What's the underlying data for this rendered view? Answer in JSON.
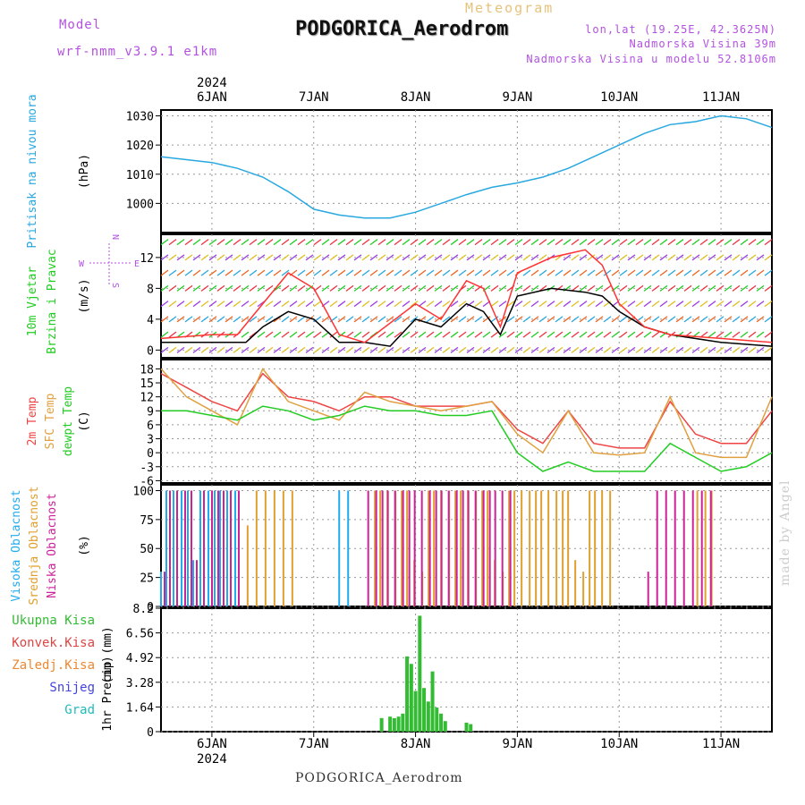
{
  "header": {
    "model_label": "Model",
    "model_version": "wrf-nmm_v3.9.1 e1km",
    "meteogram_label": "Meteogram",
    "station": "PODGORICA_Aerodrom",
    "lonlat": "lon,lat (19.25E, 42.3625N)",
    "elevation": "Nadmorska Visina 39m",
    "elevation_model": "Nadmorska Visina u modelu 52.8106m"
  },
  "footer": {
    "station": "PODGORICA_Aerodrom",
    "credit": "made by Angel"
  },
  "time_axis": {
    "year": "2024",
    "days": [
      "6JAN",
      "7JAN",
      "8JAN",
      "9JAN",
      "10JAN",
      "11JAN"
    ],
    "start": "2024-01-05T12:00",
    "end": "2024-01-11T12:00"
  },
  "colors": {
    "pressure": "#29a8e0",
    "wind_speed": "#000000",
    "gust": "#ff3333",
    "t2m": "#ee4444",
    "sfc": "#e0a040",
    "dewpt": "#22cc22",
    "high_cloud": "#22aaee",
    "mid_cloud": "#e0a030",
    "low_cloud": "#cc2299",
    "precip_total": "#33bb33",
    "precip_conv": "#dd4444",
    "precip_frz": "#ee8833"
  },
  "wind_legend": {
    "w": "W",
    "e": "E",
    "n": "N",
    "s": "S"
  },
  "chart_data": [
    {
      "type": "line",
      "panel": "pressure",
      "ylabel": "Pritisak na nivou mora",
      "unit": "(hPa)",
      "ylim": [
        990,
        1032
      ],
      "yticks": [
        1000,
        1010,
        1020,
        1030
      ],
      "grid": true,
      "series": [
        {
          "name": "Pritisak na nivou mora",
          "x": [
            "2024-01-05T12:00",
            "2024-01-05T18:00",
            "2024-01-06T00:00",
            "2024-01-06T06:00",
            "2024-01-06T12:00",
            "2024-01-06T18:00",
            "2024-01-07T00:00",
            "2024-01-07T06:00",
            "2024-01-07T12:00",
            "2024-01-07T18:00",
            "2024-01-08T00:00",
            "2024-01-08T06:00",
            "2024-01-08T12:00",
            "2024-01-08T18:00",
            "2024-01-09T00:00",
            "2024-01-09T06:00",
            "2024-01-09T12:00",
            "2024-01-09T18:00",
            "2024-01-10T00:00",
            "2024-01-10T06:00",
            "2024-01-10T12:00",
            "2024-01-10T18:00",
            "2024-01-11T00:00",
            "2024-01-11T06:00",
            "2024-01-11T12:00"
          ],
          "values": [
            1016,
            1015,
            1014,
            1012,
            1009,
            1004,
            998,
            996,
            995,
            995,
            997,
            1000,
            1003,
            1005.5,
            1007,
            1009,
            1012,
            1016,
            1020,
            1024,
            1027,
            1028,
            1030,
            1029,
            1026
          ]
        }
      ]
    },
    {
      "type": "line",
      "panel": "wind",
      "ylabel": "10m Vjetar Brzina i Pravac",
      "unit": "(m/s)",
      "ylim": [
        -1,
        15
      ],
      "yticks": [
        0,
        4,
        8,
        12
      ],
      "grid": true,
      "series": [
        {
          "name": "wind_speed",
          "x": [
            "2024-01-05T12:00",
            "2024-01-06T00:00",
            "2024-01-06T08:00",
            "2024-01-06T12:00",
            "2024-01-06T18:00",
            "2024-01-07T00:00",
            "2024-01-07T06:00",
            "2024-01-07T12:00",
            "2024-01-07T18:00",
            "2024-01-08T00:00",
            "2024-01-08T06:00",
            "2024-01-08T12:00",
            "2024-01-08T16:00",
            "2024-01-08T20:00",
            "2024-01-09T00:00",
            "2024-01-09T08:00",
            "2024-01-09T16:00",
            "2024-01-09T20:00",
            "2024-01-10T00:00",
            "2024-01-10T06:00",
            "2024-01-10T12:00",
            "2024-01-11T00:00",
            "2024-01-11T12:00"
          ],
          "values": [
            1,
            1,
            1,
            3,
            5,
            4,
            1,
            1,
            0.5,
            4,
            3,
            6,
            5,
            2,
            7,
            8,
            7.5,
            7,
            5,
            3,
            2,
            1,
            0.5
          ]
        },
        {
          "name": "gust",
          "x": [
            "2024-01-05T12:00",
            "2024-01-06T00:00",
            "2024-01-06T06:00",
            "2024-01-06T12:00",
            "2024-01-06T18:00",
            "2024-01-07T00:00",
            "2024-01-07T06:00",
            "2024-01-07T12:00",
            "2024-01-08T00:00",
            "2024-01-08T06:00",
            "2024-01-08T12:00",
            "2024-01-08T16:00",
            "2024-01-08T20:00",
            "2024-01-09T00:00",
            "2024-01-09T08:00",
            "2024-01-09T16:00",
            "2024-01-09T20:00",
            "2024-01-10T00:00",
            "2024-01-10T06:00",
            "2024-01-10T12:00",
            "2024-01-11T00:00",
            "2024-01-11T12:00"
          ],
          "values": [
            1.5,
            2,
            2,
            6,
            10,
            8,
            2,
            1,
            6,
            4,
            9,
            8,
            3,
            10,
            12,
            13,
            11,
            6,
            3,
            2,
            1.5,
            1
          ]
        }
      ]
    },
    {
      "type": "line",
      "panel": "temperature",
      "ylabel": "2m Temp / SFC Temp / dewpt Temp",
      "unit": "(C)",
      "ylim": [
        -6.5,
        20
      ],
      "yticks": [
        -6,
        -3,
        0,
        3,
        6,
        9,
        12,
        15,
        18
      ],
      "grid": true,
      "series": [
        {
          "name": "2m Temp",
          "x": [
            "2024-01-05T12:00",
            "2024-01-05T18:00",
            "2024-01-06T00:00",
            "2024-01-06T06:00",
            "2024-01-06T12:00",
            "2024-01-06T18:00",
            "2024-01-07T00:00",
            "2024-01-07T06:00",
            "2024-01-07T12:00",
            "2024-01-07T18:00",
            "2024-01-08T00:00",
            "2024-01-08T06:00",
            "2024-01-08T12:00",
            "2024-01-08T18:00",
            "2024-01-09T00:00",
            "2024-01-09T06:00",
            "2024-01-09T12:00",
            "2024-01-09T18:00",
            "2024-01-10T00:00",
            "2024-01-10T06:00",
            "2024-01-10T12:00",
            "2024-01-10T18:00",
            "2024-01-11T00:00",
            "2024-01-11T06:00",
            "2024-01-11T12:00"
          ],
          "values": [
            17,
            14,
            11,
            9,
            17,
            12,
            11,
            9,
            12,
            12,
            10,
            10,
            10,
            11,
            5,
            2,
            9,
            2,
            1,
            1,
            11,
            4,
            2,
            2,
            9
          ]
        },
        {
          "name": "SFC Temp",
          "x": [
            "2024-01-05T12:00",
            "2024-01-05T18:00",
            "2024-01-06T00:00",
            "2024-01-06T06:00",
            "2024-01-06T12:00",
            "2024-01-06T18:00",
            "2024-01-07T00:00",
            "2024-01-07T06:00",
            "2024-01-07T12:00",
            "2024-01-07T18:00",
            "2024-01-08T00:00",
            "2024-01-08T06:00",
            "2024-01-08T12:00",
            "2024-01-08T18:00",
            "2024-01-09T00:00",
            "2024-01-09T06:00",
            "2024-01-09T12:00",
            "2024-01-09T18:00",
            "2024-01-10T00:00",
            "2024-01-10T06:00",
            "2024-01-10T12:00",
            "2024-01-10T18:00",
            "2024-01-11T00:00",
            "2024-01-11T06:00",
            "2024-01-11T12:00"
          ],
          "values": [
            18,
            12,
            9,
            6,
            18,
            11,
            9,
            7,
            13,
            11,
            10,
            9,
            10,
            11,
            4,
            0,
            9,
            0,
            -0.5,
            0,
            12,
            0,
            -1,
            -1,
            12
          ]
        },
        {
          "name": "dewpt Temp",
          "x": [
            "2024-01-05T12:00",
            "2024-01-05T18:00",
            "2024-01-06T00:00",
            "2024-01-06T06:00",
            "2024-01-06T12:00",
            "2024-01-06T18:00",
            "2024-01-07T00:00",
            "2024-01-07T06:00",
            "2024-01-07T12:00",
            "2024-01-07T18:00",
            "2024-01-08T00:00",
            "2024-01-08T06:00",
            "2024-01-08T12:00",
            "2024-01-08T18:00",
            "2024-01-09T00:00",
            "2024-01-09T06:00",
            "2024-01-09T12:00",
            "2024-01-09T18:00",
            "2024-01-10T00:00",
            "2024-01-10T06:00",
            "2024-01-10T12:00",
            "2024-01-10T18:00",
            "2024-01-11T00:00",
            "2024-01-11T06:00",
            "2024-01-11T12:00"
          ],
          "values": [
            9,
            9,
            8,
            7,
            10,
            9,
            7,
            8,
            10,
            9,
            9,
            8,
            8,
            9,
            0,
            -4,
            -2,
            -4,
            -4,
            -4,
            2,
            -1,
            -4,
            -3,
            0
          ]
        }
      ]
    },
    {
      "type": "bar",
      "panel": "clouds",
      "ylabel": "Visoka Oblacnost / Srednja Oblacnost / Niska Oblacnost",
      "unit": "(%)",
      "ylim": [
        0,
        105
      ],
      "yticks": [
        0,
        25,
        50,
        75,
        100
      ],
      "grid": true,
      "series": [
        {
          "name": "Visoka Oblacnost",
          "ranges": [
            [
              "2024-01-05T12:00",
              "2024-01-06T06:00"
            ],
            [
              "2024-01-07T06:00",
              "2024-01-07T10:00"
            ]
          ],
          "value": 100
        },
        {
          "name": "Srednja Oblacnost",
          "ranges": [
            [
              "2024-01-06T08:00",
              "2024-01-06T20:00"
            ],
            [
              "2024-01-07T14:00",
              "2024-01-09T22:00"
            ],
            [
              "2024-01-10T18:00",
              "2024-01-10T22:00"
            ]
          ],
          "value": 100
        },
        {
          "name": "Niska Oblacnost",
          "ranges": [
            [
              "2024-01-05T12:00",
              "2024-01-06T06:00"
            ],
            [
              "2024-01-07T12:00",
              "2024-01-08T22:00"
            ],
            [
              "2024-01-10T06:00",
              "2024-01-10T22:00"
            ]
          ],
          "value": 100
        }
      ]
    },
    {
      "type": "bar",
      "panel": "precip",
      "ylabel": "1hr Precip (mm)",
      "unit": "(mm)",
      "ylim": [
        0,
        8.2
      ],
      "yticks": [
        0,
        1.64,
        3.28,
        4.92,
        6.56,
        8.2
      ],
      "grid": true,
      "legend": [
        "Ukupna Kisa",
        "Konvek.Kisa",
        "Zaledj.Kisa",
        "Snijeg",
        "Grad"
      ],
      "series": [
        {
          "name": "Ukupna Kisa",
          "x": [
            "2024-01-07T16:00",
            "2024-01-07T18:00",
            "2024-01-07T19:00",
            "2024-01-07T20:00",
            "2024-01-07T21:00",
            "2024-01-07T22:00",
            "2024-01-07T23:00",
            "2024-01-08T00:00",
            "2024-01-08T01:00",
            "2024-01-08T02:00",
            "2024-01-08T03:00",
            "2024-01-08T04:00",
            "2024-01-08T05:00",
            "2024-01-08T06:00",
            "2024-01-08T07:00",
            "2024-01-08T12:00",
            "2024-01-08T13:00"
          ],
          "values": [
            0.9,
            1.0,
            0.9,
            1.0,
            1.2,
            5.0,
            4.5,
            2.7,
            7.7,
            2.9,
            2.0,
            4.0,
            1.6,
            1.2,
            0.7,
            0.6,
            0.5
          ]
        }
      ]
    }
  ]
}
